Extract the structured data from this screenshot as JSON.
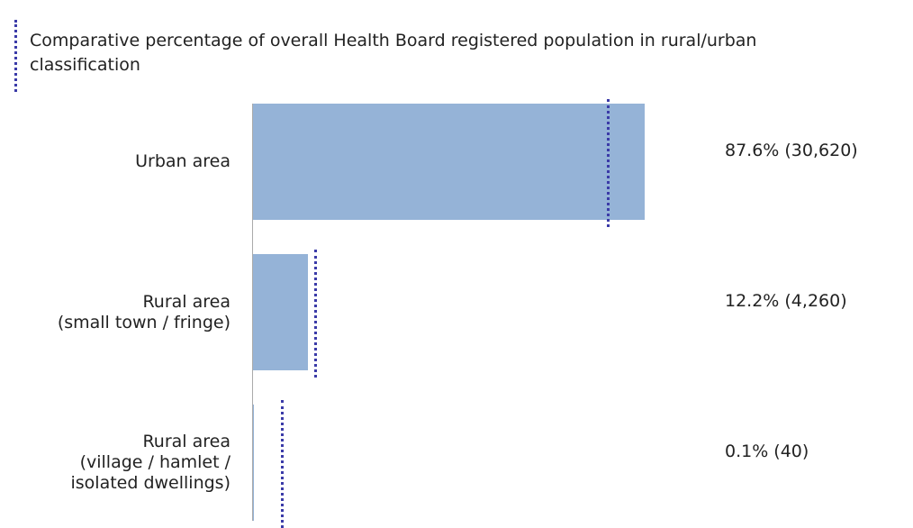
{
  "chart_data": {
    "type": "bar",
    "orientation": "horizontal",
    "categories": [
      "Urban area",
      "Rural area\n(small town / fringe)",
      "Rural area\n(village / hamlet /\nisolated dwellings)"
    ],
    "values": [
      87.6,
      12.2,
      0.1
    ],
    "value_labels": [
      "87.6% (30,620)",
      "12.2% (4,260)",
      "0.1% (40)"
    ],
    "color": "#95b3d7",
    "comparison": {
      "name": "Comparative percentage of overall Health Board registered population in rural/urban classification",
      "color": "#3b3ba8",
      "values": [
        79.5,
        13.9,
        6.6
      ]
    },
    "xlim": [
      0,
      100
    ]
  }
}
